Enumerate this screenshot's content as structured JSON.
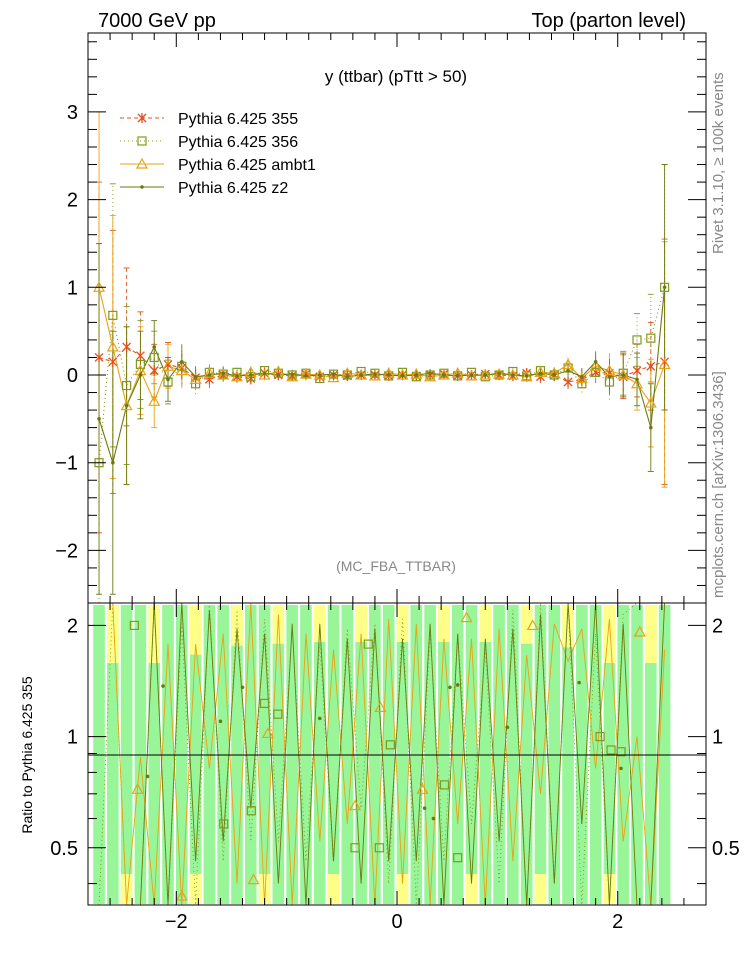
{
  "header": {
    "left": "7000 GeV pp",
    "right": "Top (parton level)"
  },
  "side_labels": {
    "rivet": "Rivet 3.1.10, ≥ 100k events",
    "source": "mcplots.cern.ch [arXiv:1306.3436]"
  },
  "chart_data": {
    "type": "line",
    "title": "y (ttbar) (pTtt > 50)",
    "watermark": "(MC_FBA_TTBAR)",
    "xlabel": "",
    "ylabel": "",
    "ratio_ylabel": "Ratio to Pythia 6.425 355",
    "xlim": [
      -2.8,
      2.8
    ],
    "ylim": [
      -2.6,
      3.9
    ],
    "ratio_ylim": [
      0.35,
      2.3
    ],
    "x_ticks": [
      -2,
      0,
      2
    ],
    "y_ticks": [
      -2,
      -1,
      0,
      1,
      2,
      3
    ],
    "ratio_ticks": [
      0.5,
      1,
      2
    ],
    "legend_position": "top-left",
    "colors": {
      "s355": "#e0521c",
      "s356": "#7f9a1e",
      "ambt1": "#e8a317",
      "z2": "#6b7a0f",
      "band_green": "#98f598",
      "band_yellow": "#ffff88"
    },
    "x": [
      -2.7,
      -2.575,
      -2.45,
      -2.325,
      -2.2,
      -2.075,
      -1.95,
      -1.825,
      -1.7,
      -1.575,
      -1.45,
      -1.325,
      -1.2,
      -1.075,
      -0.95,
      -0.825,
      -0.7,
      -0.575,
      -0.45,
      -0.325,
      -0.2,
      -0.075,
      0.05,
      0.175,
      0.3,
      0.425,
      0.55,
      0.675,
      0.8,
      0.925,
      1.05,
      1.175,
      1.3,
      1.425,
      1.55,
      1.675,
      1.8,
      1.925,
      2.05,
      2.175,
      2.3,
      2.425
    ],
    "series": [
      {
        "name": "Pythia 6.425 355",
        "key": "s355",
        "values": [
          0.2,
          0.15,
          0.32,
          0.22,
          0.05,
          0.12,
          0.08,
          -0.03,
          -0.05,
          0.0,
          -0.02,
          -0.04,
          0.02,
          0.0,
          -0.01,
          0.01,
          -0.02,
          0.0,
          -0.01,
          0.0,
          0.0,
          -0.01,
          0.0,
          -0.01,
          0.0,
          0.01,
          -0.01,
          0.0,
          0.01,
          0.0,
          -0.01,
          0.02,
          -0.02,
          0.0,
          -0.08,
          -0.05,
          0.03,
          0.02,
          -0.02,
          0.05,
          0.1,
          0.15
        ]
      },
      {
        "name": "Pythia 6.425 356",
        "key": "s356",
        "values": [
          -1.0,
          0.68,
          -0.12,
          0.12,
          0.2,
          -0.08,
          0.1,
          -0.1,
          0.03,
          0.01,
          0.03,
          -0.02,
          0.05,
          0.02,
          0.0,
          0.02,
          -0.04,
          0.01,
          0.0,
          0.04,
          0.02,
          -0.01,
          0.03,
          -0.02,
          0.0,
          0.02,
          -0.01,
          0.03,
          -0.02,
          0.0,
          0.04,
          -0.01,
          0.05,
          0.0,
          0.08,
          -0.1,
          0.03,
          -0.08,
          0.02,
          0.4,
          0.42,
          1.0
        ]
      },
      {
        "name": "Pythia 6.425 ambt1",
        "key": "ambt1",
        "values": [
          1.0,
          0.32,
          -0.35,
          0.05,
          -0.3,
          0.1,
          0.05,
          -0.05,
          0.02,
          0.0,
          -0.02,
          0.03,
          0.0,
          0.04,
          -0.02,
          0.01,
          0.0,
          -0.03,
          0.02,
          0.0,
          -0.01,
          0.02,
          0.0,
          0.01,
          -0.02,
          0.0,
          0.02,
          -0.01,
          0.0,
          0.01,
          0.0,
          -0.02,
          0.03,
          0.02,
          0.12,
          -0.04,
          0.1,
          0.05,
          0.0,
          -0.1,
          -0.32,
          0.12
        ]
      },
      {
        "name": "Pythia 6.425 z2",
        "key": "z2",
        "values": [
          -0.5,
          -1.0,
          -0.35,
          0.0,
          0.32,
          -0.05,
          0.15,
          -0.02,
          0.0,
          0.02,
          -0.01,
          0.0,
          0.02,
          0.0,
          0.01,
          -0.01,
          0.0,
          0.01,
          -0.02,
          0.0,
          0.01,
          0.0,
          -0.01,
          0.0,
          0.02,
          0.0,
          -0.01,
          0.0,
          0.0,
          0.02,
          0.0,
          -0.01,
          0.02,
          0.0,
          0.05,
          -0.02,
          0.15,
          -0.02,
          0.0,
          -0.05,
          -0.6,
          1.0
        ]
      }
    ],
    "errors": [
      2.0,
      1.5,
      0.9,
      0.5,
      0.3,
      0.25,
      0.2,
      0.12,
      0.1,
      0.08,
      0.07,
      0.07,
      0.06,
      0.06,
      0.05,
      0.05,
      0.05,
      0.05,
      0.05,
      0.05,
      0.05,
      0.05,
      0.05,
      0.05,
      0.05,
      0.05,
      0.05,
      0.05,
      0.05,
      0.05,
      0.06,
      0.06,
      0.07,
      0.07,
      0.08,
      0.1,
      0.12,
      0.2,
      0.25,
      0.3,
      0.5,
      1.4
    ],
    "ratio_markers": [
      {
        "key": "s356",
        "x": -2.38,
        "y": 2.0
      },
      {
        "key": "s356",
        "x": -1.57,
        "y": 0.58
      },
      {
        "key": "s356",
        "x": -1.32,
        "y": 0.63
      },
      {
        "key": "s356",
        "x": -1.2,
        "y": 1.23
      },
      {
        "key": "s356",
        "x": -1.08,
        "y": 1.15
      },
      {
        "key": "s356",
        "x": -0.38,
        "y": 0.5
      },
      {
        "key": "s356",
        "x": -0.26,
        "y": 1.78
      },
      {
        "key": "s356",
        "x": -0.16,
        "y": 0.5
      },
      {
        "key": "s356",
        "x": -0.06,
        "y": 0.95
      },
      {
        "key": "s356",
        "x": 0.43,
        "y": 0.74
      },
      {
        "key": "s356",
        "x": 0.55,
        "y": 0.47
      },
      {
        "key": "s356",
        "x": 1.84,
        "y": 1.0
      },
      {
        "key": "s356",
        "x": 1.94,
        "y": 0.92
      },
      {
        "key": "s356",
        "x": 2.03,
        "y": 0.91
      },
      {
        "key": "ambt1",
        "x": -2.35,
        "y": 0.72
      },
      {
        "key": "ambt1",
        "x": -1.95,
        "y": 0.37
      },
      {
        "key": "ambt1",
        "x": -1.3,
        "y": 0.41
      },
      {
        "key": "ambt1",
        "x": -1.17,
        "y": 1.02
      },
      {
        "key": "ambt1",
        "x": -0.38,
        "y": 0.65
      },
      {
        "key": "ambt1",
        "x": 0.23,
        "y": 0.72
      },
      {
        "key": "ambt1",
        "x": 0.63,
        "y": 2.1
      },
      {
        "key": "ambt1",
        "x": 1.23,
        "y": 2.0
      },
      {
        "key": "ambt1",
        "x": 2.2,
        "y": 1.92
      },
      {
        "key": "ambt1",
        "x": -0.15,
        "y": 1.2
      },
      {
        "key": "z2",
        "x": -2.26,
        "y": 0.78
      },
      {
        "key": "z2",
        "x": -2.12,
        "y": 1.37
      },
      {
        "key": "z2",
        "x": -1.4,
        "y": 1.36
      },
      {
        "key": "z2",
        "x": -0.7,
        "y": 1.12
      },
      {
        "key": "z2",
        "x": 0.25,
        "y": 0.64
      },
      {
        "key": "z2",
        "x": 0.33,
        "y": 0.6
      },
      {
        "key": "z2",
        "x": 0.48,
        "y": 1.36
      },
      {
        "key": "z2",
        "x": 0.55,
        "y": 1.38
      },
      {
        "key": "z2",
        "x": 1.0,
        "y": 1.06
      },
      {
        "key": "z2",
        "x": 1.65,
        "y": 1.4
      },
      {
        "key": "z2",
        "x": 2.03,
        "y": 0.82
      },
      {
        "key": "z2",
        "x": -1.6,
        "y": 1.1
      }
    ]
  }
}
